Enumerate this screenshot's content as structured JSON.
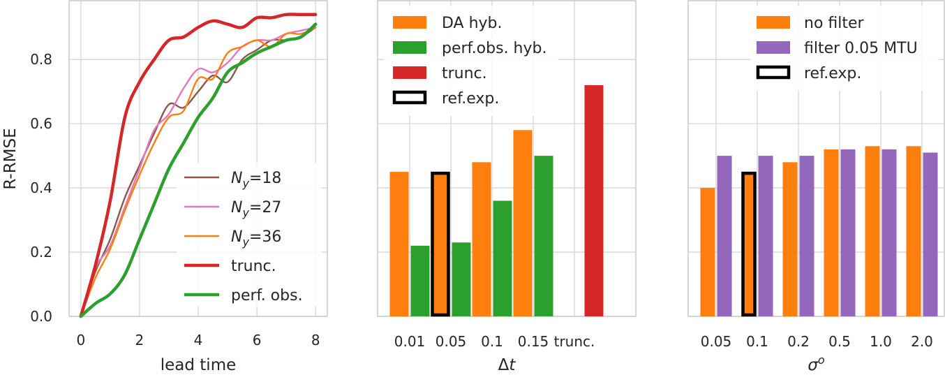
{
  "colors": {
    "brown": "#8c564b",
    "pink": "#e377c2",
    "orange": "#ff7f0e",
    "red": "#d62728",
    "green": "#2ca02c",
    "purple": "#9467bd"
  },
  "chart_data": [
    {
      "type": "line",
      "xlabel": "lead time",
      "ylabel": "R-RMSE",
      "xlim": [
        -0.4,
        8.4
      ],
      "ylim": [
        0,
        1.0
      ],
      "xticks": [
        "0",
        "2",
        "4",
        "6",
        "8"
      ],
      "yticks": [
        "0.0",
        "0.2",
        "0.4",
        "0.6",
        "0.8"
      ],
      "grid": true,
      "legend_position": "lower-right",
      "series": [
        {
          "name": "N_y=18",
          "color_key": "brown",
          "width": 2.4,
          "x": [
            0,
            0.5,
            1,
            1.5,
            2,
            2.5,
            3,
            3.5,
            4,
            4.5,
            5,
            5.5,
            6,
            6.5,
            7,
            7.5,
            8
          ],
          "y": [
            0,
            0.14,
            0.24,
            0.37,
            0.47,
            0.57,
            0.66,
            0.65,
            0.7,
            0.75,
            0.73,
            0.8,
            0.83,
            0.86,
            0.86,
            0.87,
            0.9
          ]
        },
        {
          "name": "N_y=27",
          "color_key": "pink",
          "width": 2.4,
          "x": [
            0,
            0.5,
            1,
            1.5,
            2,
            2.5,
            3,
            3.5,
            4,
            4.5,
            5,
            5.5,
            6,
            6.5,
            7,
            7.5,
            8
          ],
          "y": [
            0,
            0.15,
            0.22,
            0.34,
            0.46,
            0.58,
            0.63,
            0.71,
            0.77,
            0.76,
            0.79,
            0.84,
            0.86,
            0.86,
            0.88,
            0.89,
            0.9
          ]
        },
        {
          "name": "N_y=36",
          "color_key": "orange",
          "width": 2.4,
          "x": [
            0,
            0.5,
            1,
            1.5,
            2,
            2.5,
            3,
            3.5,
            4,
            4.5,
            5,
            5.5,
            6,
            6.5,
            7,
            7.5,
            8
          ],
          "y": [
            0,
            0.12,
            0.21,
            0.33,
            0.44,
            0.54,
            0.62,
            0.64,
            0.74,
            0.74,
            0.82,
            0.84,
            0.86,
            0.84,
            0.88,
            0.88,
            0.9
          ]
        },
        {
          "name": "trunc.",
          "color_key": "red",
          "width": 4.5,
          "x": [
            0,
            0.5,
            1,
            1.5,
            2,
            2.5,
            3,
            3.5,
            4,
            4.5,
            5,
            5.5,
            6,
            6.5,
            7,
            7.5,
            8
          ],
          "y": [
            0,
            0.16,
            0.36,
            0.62,
            0.73,
            0.8,
            0.86,
            0.87,
            0.9,
            0.92,
            0.91,
            0.9,
            0.93,
            0.93,
            0.94,
            0.94,
            0.94
          ]
        },
        {
          "name": "perf. obs.",
          "color_key": "green",
          "width": 4.5,
          "x": [
            0,
            0.5,
            1,
            1.5,
            2,
            2.5,
            3,
            3.5,
            4,
            4.5,
            5,
            5.5,
            6,
            6.5,
            7,
            7.5,
            8
          ],
          "y": [
            0,
            0.04,
            0.07,
            0.13,
            0.24,
            0.35,
            0.46,
            0.54,
            0.62,
            0.68,
            0.76,
            0.79,
            0.82,
            0.84,
            0.86,
            0.87,
            0.91
          ]
        }
      ]
    },
    {
      "type": "bar",
      "xlabel": "Δt",
      "ylim": [
        0,
        1.0
      ],
      "categories": [
        "0.01",
        "0.05",
        "0.1",
        "0.15",
        "trunc."
      ],
      "legend_position": "upper-left",
      "series": [
        {
          "name": "DA hyb.",
          "color_key": "orange",
          "values": [
            0.45,
            0.45,
            0.48,
            0.58,
            null
          ]
        },
        {
          "name": "perf.obs. hyb.",
          "color_key": "green",
          "values": [
            0.22,
            0.23,
            0.36,
            0.5,
            null
          ]
        },
        {
          "name": "trunc.",
          "color_key": "red",
          "values": [
            null,
            null,
            null,
            null,
            0.72
          ]
        }
      ],
      "reference": {
        "name": "ref.exp.",
        "category_index": 1,
        "series_index": 0
      }
    },
    {
      "type": "bar",
      "xlabel": "σ",
      "xlabel_sup": "o",
      "ylim": [
        0,
        1.0
      ],
      "categories": [
        "0.05",
        "0.1",
        "0.2",
        "0.5",
        "1.0",
        "2.0"
      ],
      "legend_position": "upper-center",
      "series": [
        {
          "name": "no filter",
          "color_key": "orange",
          "values": [
            0.4,
            0.45,
            0.48,
            0.52,
            0.53,
            0.53
          ]
        },
        {
          "name": "filter 0.05 MTU",
          "color_key": "purple",
          "values": [
            0.5,
            0.5,
            0.5,
            0.52,
            0.52,
            0.51
          ]
        }
      ],
      "reference": {
        "name": "ref.exp.",
        "category_index": 1,
        "series_index": 0
      }
    }
  ]
}
